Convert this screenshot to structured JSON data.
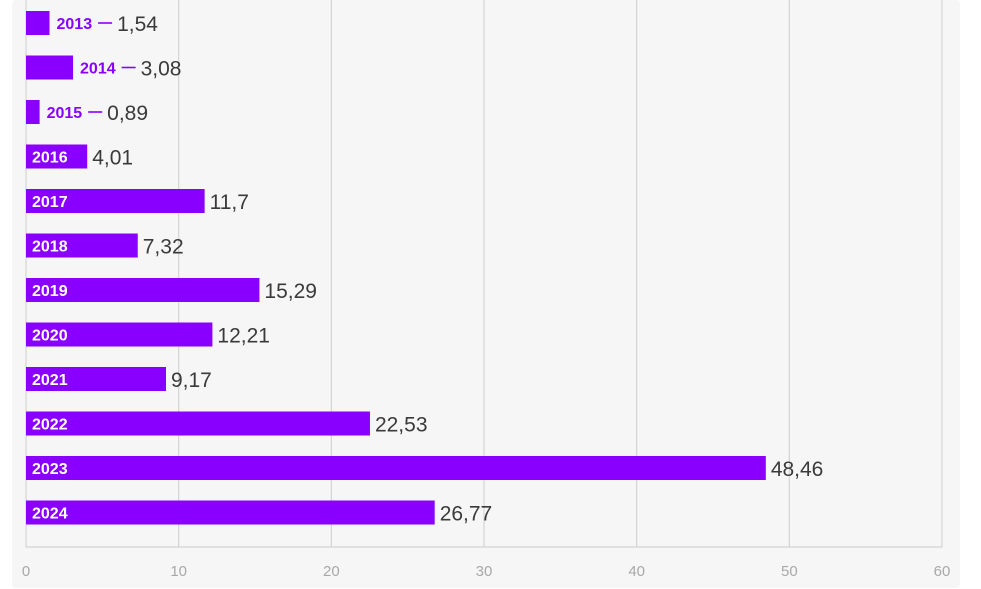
{
  "chart_data": {
    "type": "bar",
    "orientation": "horizontal",
    "categories": [
      "2013",
      "2014",
      "2015",
      "2016",
      "2017",
      "2018",
      "2019",
      "2020",
      "2021",
      "2022",
      "2023",
      "2024"
    ],
    "values": [
      1.54,
      3.08,
      0.89,
      4.01,
      11.7,
      7.32,
      15.29,
      12.21,
      9.17,
      22.53,
      48.46,
      26.77
    ],
    "value_labels": [
      "1,54",
      "3,08",
      "0,89",
      "4,01",
      "11,7",
      "7,32",
      "15,29",
      "12,21",
      "9,17",
      "22,53",
      "48,46",
      "26,77"
    ],
    "xlim": [
      0,
      60
    ],
    "xticks": [
      0,
      10,
      20,
      30,
      40,
      50,
      60
    ],
    "title": "",
    "xlabel": "",
    "ylabel": "",
    "grid": true,
    "legend": "none",
    "colors": {
      "bar": "#8a00ff",
      "label_outside": "#8a00ff",
      "value": "#3a3a3a",
      "grid": "#d4d4d4",
      "tick": "#a8a8a8"
    }
  }
}
